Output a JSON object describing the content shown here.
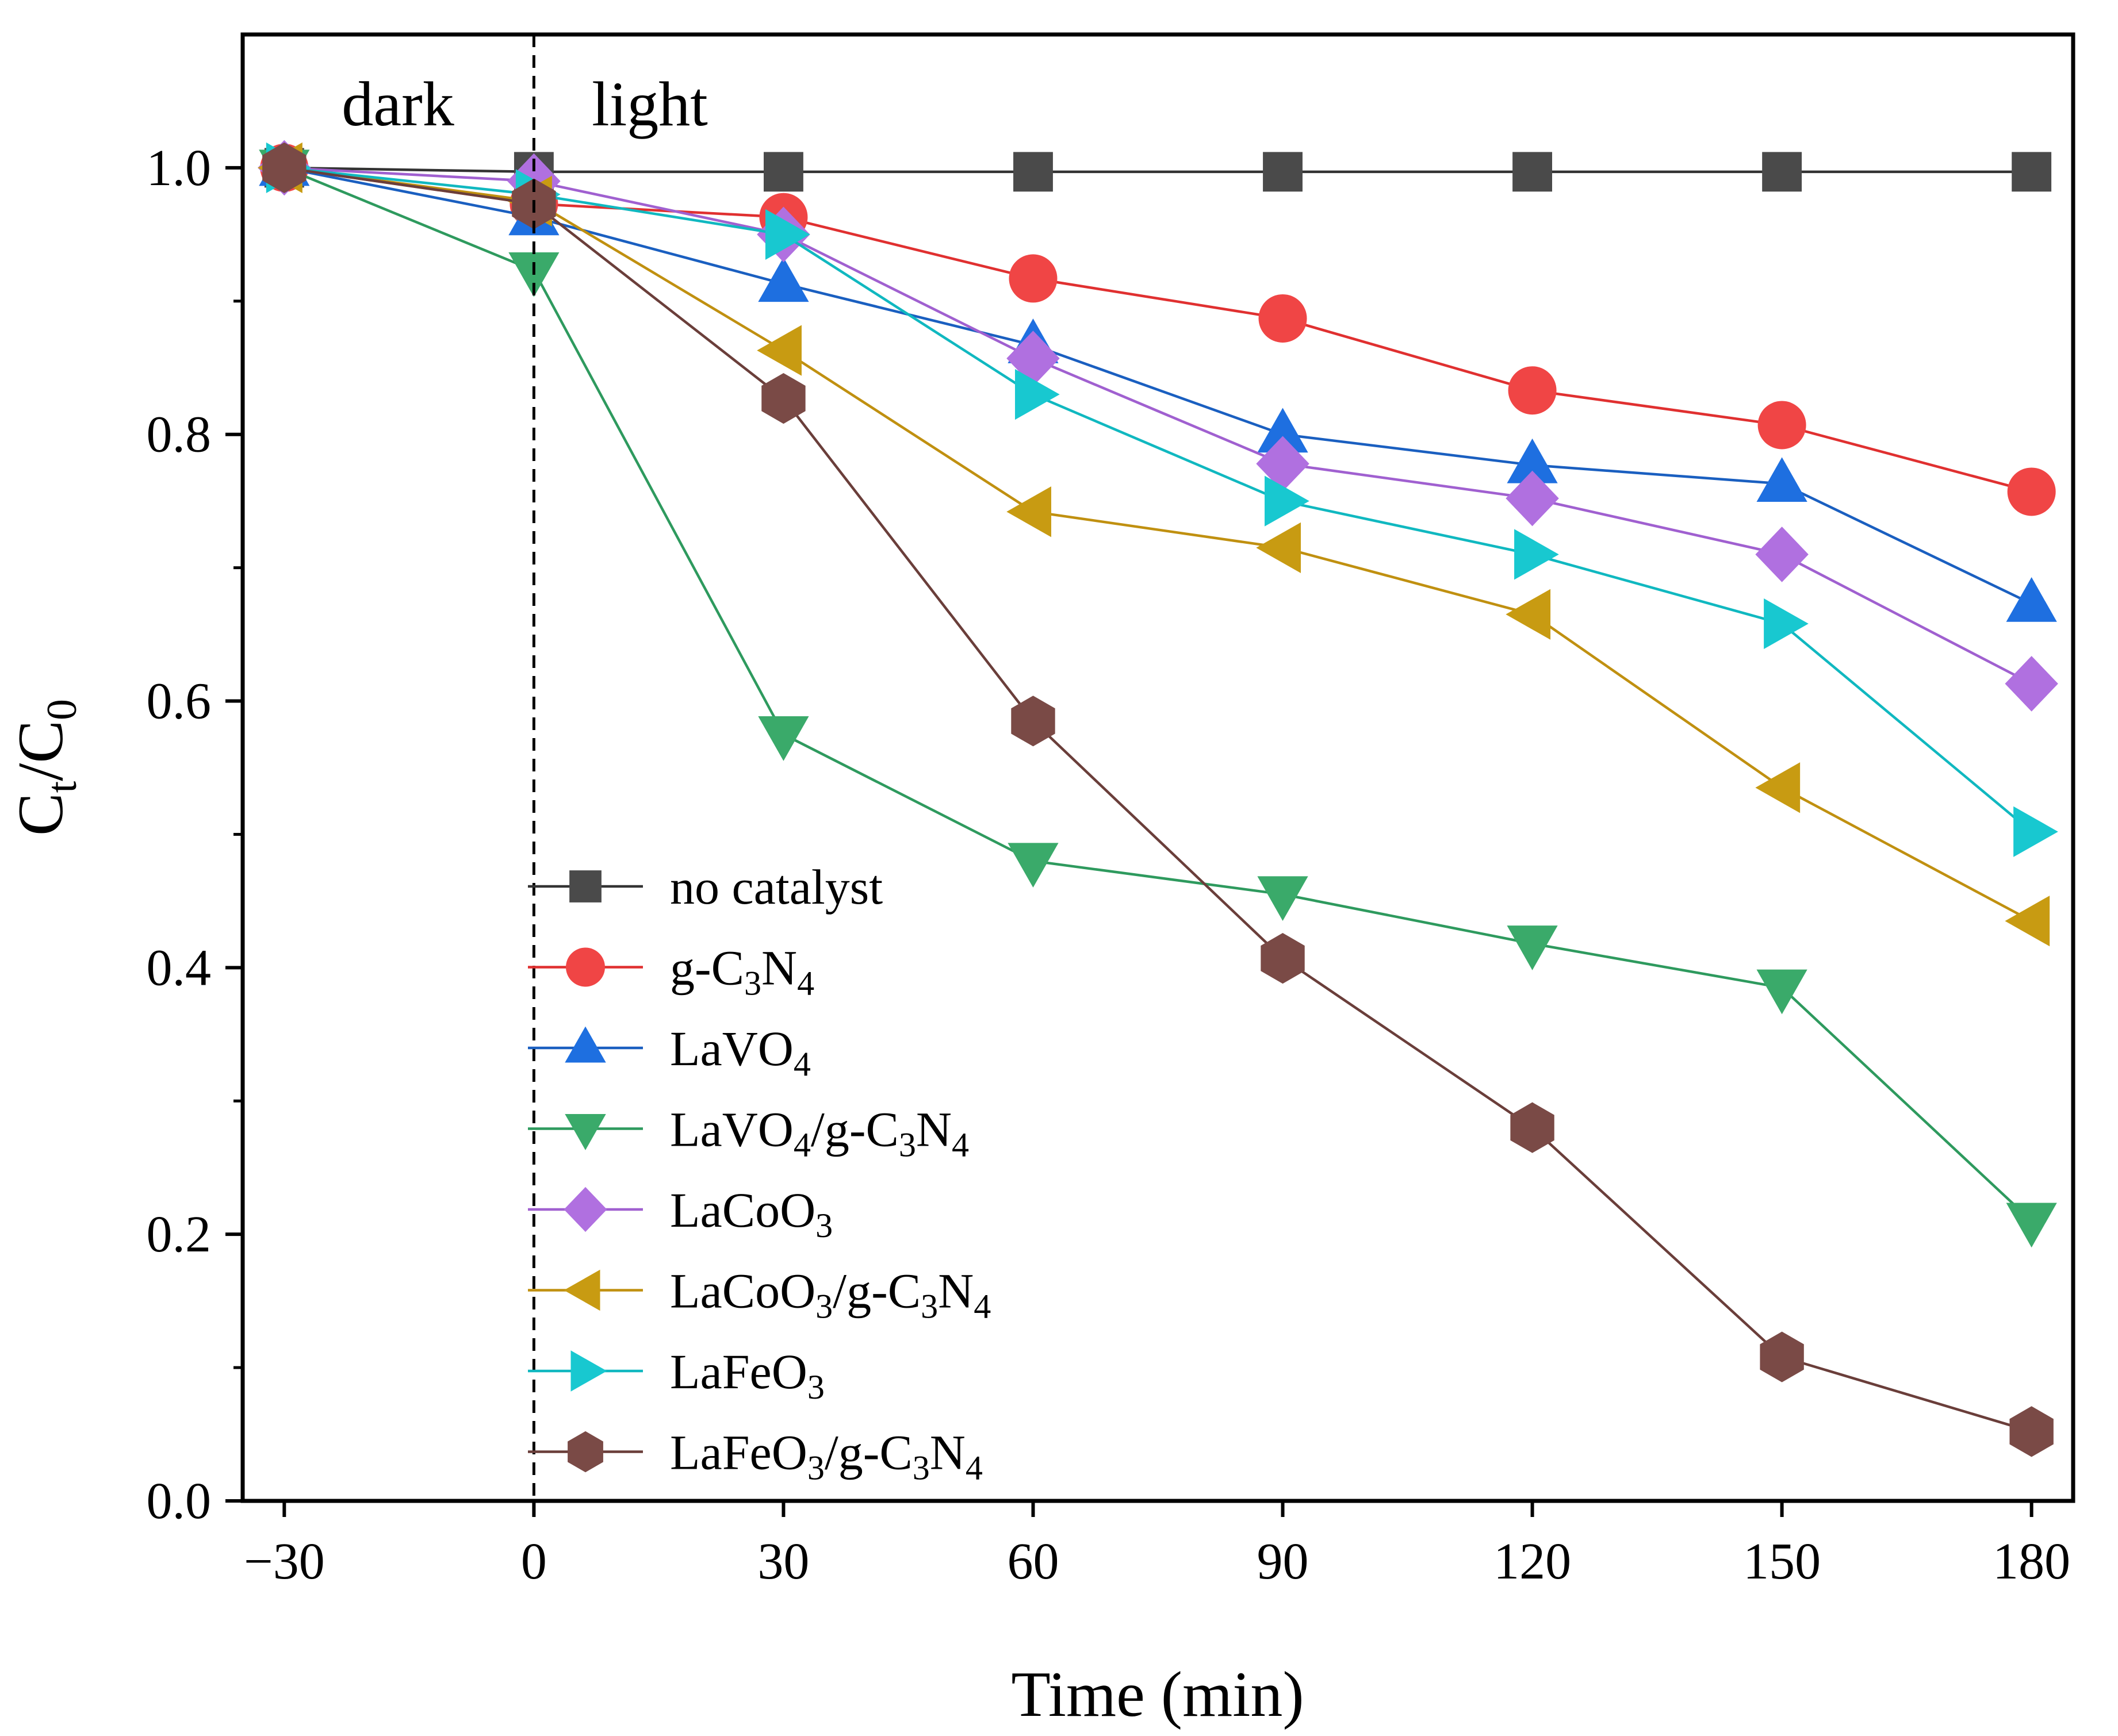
{
  "chart_data": {
    "type": "line",
    "title": "",
    "xlabel": "Time (min)",
    "ylabel": {
      "main": "C",
      "sub1": "t",
      "sep": "/C",
      "sub2": "0"
    },
    "xlim": [
      -35,
      185
    ],
    "ylim": [
      0.0,
      1.1
    ],
    "x": [
      -30,
      0,
      30,
      60,
      90,
      120,
      150,
      180
    ],
    "x_ticks": [
      {
        "value": -30,
        "label": "−30"
      },
      {
        "value": 0,
        "label": "0"
      },
      {
        "value": 30,
        "label": "30"
      },
      {
        "value": 60,
        "label": "60"
      },
      {
        "value": 90,
        "label": "90"
      },
      {
        "value": 120,
        "label": "120"
      },
      {
        "value": 150,
        "label": "150"
      },
      {
        "value": 180,
        "label": "180"
      }
    ],
    "y_ticks": [
      {
        "value": 0.0,
        "label": "0.0"
      },
      {
        "value": 0.2,
        "label": "0.2"
      },
      {
        "value": 0.4,
        "label": "0.4"
      },
      {
        "value": 0.6,
        "label": "0.6"
      },
      {
        "value": 0.8,
        "label": "0.8"
      },
      {
        "value": 1.0,
        "label": "1.0"
      }
    ],
    "y_minor_ticks": [
      0.1,
      0.3,
      0.5,
      0.7,
      0.9
    ],
    "grid": false,
    "divider_x": 0,
    "annotations": {
      "dark": "dark",
      "light": "light"
    },
    "legend_position": "center",
    "series": [
      {
        "name": {
          "parts": [
            {
              "t": "no catalyst"
            }
          ]
        },
        "marker": "square",
        "color": "#4a4a4a",
        "line": "#333333",
        "values": [
          1.0,
          0.997,
          0.997,
          0.997,
          0.997,
          0.997,
          0.997,
          0.997
        ]
      },
      {
        "name": {
          "parts": [
            {
              "t": "g-C"
            },
            {
              "s": "3"
            },
            {
              "t": "N"
            },
            {
              "s": "4"
            }
          ]
        },
        "marker": "circle",
        "color": "#f04545",
        "line": "#e03030",
        "values": [
          1.0,
          0.973,
          0.963,
          0.917,
          0.887,
          0.833,
          0.807,
          0.757
        ]
      },
      {
        "name": {
          "parts": [
            {
              "t": "LaVO"
            },
            {
              "s": "4"
            }
          ]
        },
        "marker": "triangle-up",
        "color": "#1e6fe0",
        "line": "#1a5fc0",
        "values": [
          1.0,
          0.963,
          0.913,
          0.867,
          0.8,
          0.777,
          0.763,
          0.673
        ]
      },
      {
        "name": {
          "parts": [
            {
              "t": "LaVO"
            },
            {
              "s": "4"
            },
            {
              "t": "/g-C"
            },
            {
              "s": "3"
            },
            {
              "t": "N"
            },
            {
              "s": "4"
            }
          ]
        },
        "marker": "triangle-down",
        "color": "#3aaa6a",
        "line": "#2e9a5e",
        "values": [
          1.0,
          0.923,
          0.575,
          0.48,
          0.455,
          0.418,
          0.385,
          0.21
        ]
      },
      {
        "name": {
          "parts": [
            {
              "t": "LaCoO"
            },
            {
              "s": "3"
            }
          ]
        },
        "marker": "diamond",
        "color": "#b070e0",
        "line": "#a060d0",
        "values": [
          1.0,
          0.99,
          0.95,
          0.857,
          0.778,
          0.752,
          0.71,
          0.613
        ]
      },
      {
        "name": {
          "parts": [
            {
              "t": "LaCoO"
            },
            {
              "s": "3"
            },
            {
              "t": "/g-C"
            },
            {
              "s": "3"
            },
            {
              "t": "N"
            },
            {
              "s": "4"
            }
          ]
        },
        "marker": "triangle-left",
        "color": "#c89b12",
        "line": "#c09010",
        "values": [
          1.0,
          0.975,
          0.863,
          0.742,
          0.715,
          0.665,
          0.535,
          0.435
        ]
      },
      {
        "name": {
          "parts": [
            {
              "t": "LaFeO"
            },
            {
              "s": "3"
            }
          ]
        },
        "marker": "triangle-right",
        "color": "#18c8d0",
        "line": "#10b8c0",
        "values": [
          1.0,
          0.98,
          0.95,
          0.83,
          0.75,
          0.71,
          0.658,
          0.502
        ]
      },
      {
        "name": {
          "parts": [
            {
              "t": "LaFeO"
            },
            {
              "s": "3"
            },
            {
              "t": "/g-C"
            },
            {
              "s": "3"
            },
            {
              "t": "N"
            },
            {
              "s": "4"
            }
          ]
        },
        "marker": "hexagon",
        "color": "#7a4a46",
        "line": "#6a3e3a",
        "values": [
          1.0,
          0.973,
          0.827,
          0.585,
          0.407,
          0.28,
          0.108,
          0.052
        ]
      }
    ]
  }
}
